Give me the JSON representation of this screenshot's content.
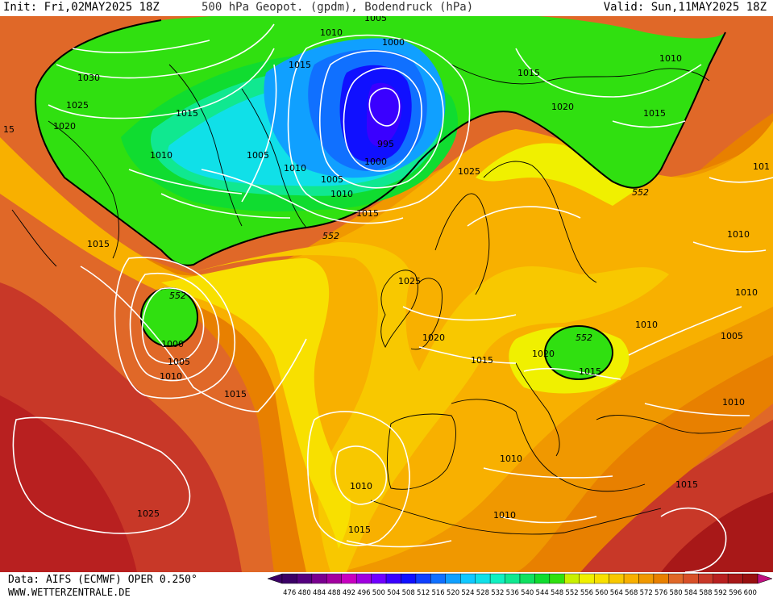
{
  "header": {
    "init": "Init: Fri,02MAY2025 18Z",
    "title": "500 hPa Geopot. (gpdm), Bodendruck (hPa)",
    "valid": "Valid: Sun,11MAY2025 18Z"
  },
  "footer": {
    "source": "Data: AIFS (ECMWF) OPER 0.250°",
    "website": "WWW.WETTERZENTRALE.DE"
  },
  "colors": {
    "background": "#ffffff",
    "isobar": "#ffffff",
    "text": "#000000",
    "coast": "#000000"
  },
  "colorbar": {
    "unit": "gpdm",
    "ticks": [
      "476",
      "480",
      "484",
      "488",
      "492",
      "496",
      "500",
      "504",
      "508",
      "512",
      "516",
      "520",
      "524",
      "528",
      "532",
      "536",
      "540",
      "544",
      "548",
      "552",
      "556",
      "560",
      "564",
      "568",
      "572",
      "576",
      "580",
      "584",
      "588",
      "592",
      "596",
      "600"
    ],
    "colors": [
      "#3b0066",
      "#55007f",
      "#7a008f",
      "#a3009f",
      "#c800c0",
      "#a000e0",
      "#7000ff",
      "#3a00ff",
      "#1010ff",
      "#1040ff",
      "#1070ff",
      "#10a0ff",
      "#10c8ff",
      "#10e0e8",
      "#10f0c0",
      "#10e890",
      "#10e060",
      "#10dc30",
      "#30e010",
      "#c8f000",
      "#f0f000",
      "#f8e000",
      "#f8c800",
      "#f8b000",
      "#f09800",
      "#e88000",
      "#e06828",
      "#d85028",
      "#c83828",
      "#b82020",
      "#a81818",
      "#981010"
    ]
  },
  "map": {
    "geopotential_contours": [
      {
        "label": "552"
      },
      {
        "label": "552"
      },
      {
        "label": "552"
      },
      {
        "label": "552"
      },
      {
        "label": "552"
      }
    ],
    "isobar_labels": [
      {
        "label": "1005"
      },
      {
        "label": "1010"
      },
      {
        "label": "1000"
      },
      {
        "label": "1015"
      },
      {
        "label": "1030"
      },
      {
        "label": "1025"
      },
      {
        "label": "1020"
      },
      {
        "label": "1015"
      },
      {
        "label": "15"
      },
      {
        "label": "1010"
      },
      {
        "label": "1005"
      },
      {
        "label": "1010"
      },
      {
        "label": "995"
      },
      {
        "label": "1000"
      },
      {
        "label": "1005"
      },
      {
        "label": "1010"
      },
      {
        "label": "1015"
      },
      {
        "label": "1015"
      },
      {
        "label": "1020"
      },
      {
        "label": "1010"
      },
      {
        "label": "1015"
      },
      {
        "label": "1025"
      },
      {
        "label": "1015"
      },
      {
        "label": "1000"
      },
      {
        "label": "1005"
      },
      {
        "label": "1010"
      },
      {
        "label": "1015"
      },
      {
        "label": "1025"
      },
      {
        "label": "1020"
      },
      {
        "label": "1015"
      },
      {
        "label": "1020"
      },
      {
        "label": "1015"
      },
      {
        "label": "1010"
      },
      {
        "label": "1010"
      },
      {
        "label": "1005"
      },
      {
        "label": "1010"
      },
      {
        "label": "1010"
      },
      {
        "label": "1010"
      },
      {
        "label": "1010"
      },
      {
        "label": "1015"
      },
      {
        "label": "1015"
      },
      {
        "label": "1025"
      },
      {
        "label": "101"
      }
    ]
  }
}
